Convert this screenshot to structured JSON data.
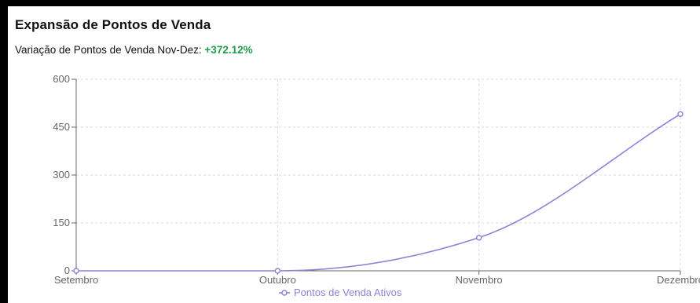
{
  "header": {
    "title": "Expansão de Pontos de Venda",
    "subtitle_label": "Variação de Pontos de Venda Nov-Dez:",
    "subtitle_value": "+372.12%"
  },
  "colors": {
    "line": "#8884d8",
    "positive": "#1e9e4a",
    "grid": "#d9d9d9",
    "axis": "#666666"
  },
  "chart_data": {
    "type": "line",
    "categories": [
      "Setembro",
      "Outubro",
      "Novembro",
      "Dezembro"
    ],
    "series": [
      {
        "name": "Pontos de Venda Ativos",
        "values": [
          0,
          0,
          104,
          491
        ]
      }
    ],
    "ylim": [
      0,
      600
    ],
    "yticks": [
      0,
      150,
      300,
      450,
      600
    ],
    "grid": true,
    "legend": "bottom-center"
  }
}
